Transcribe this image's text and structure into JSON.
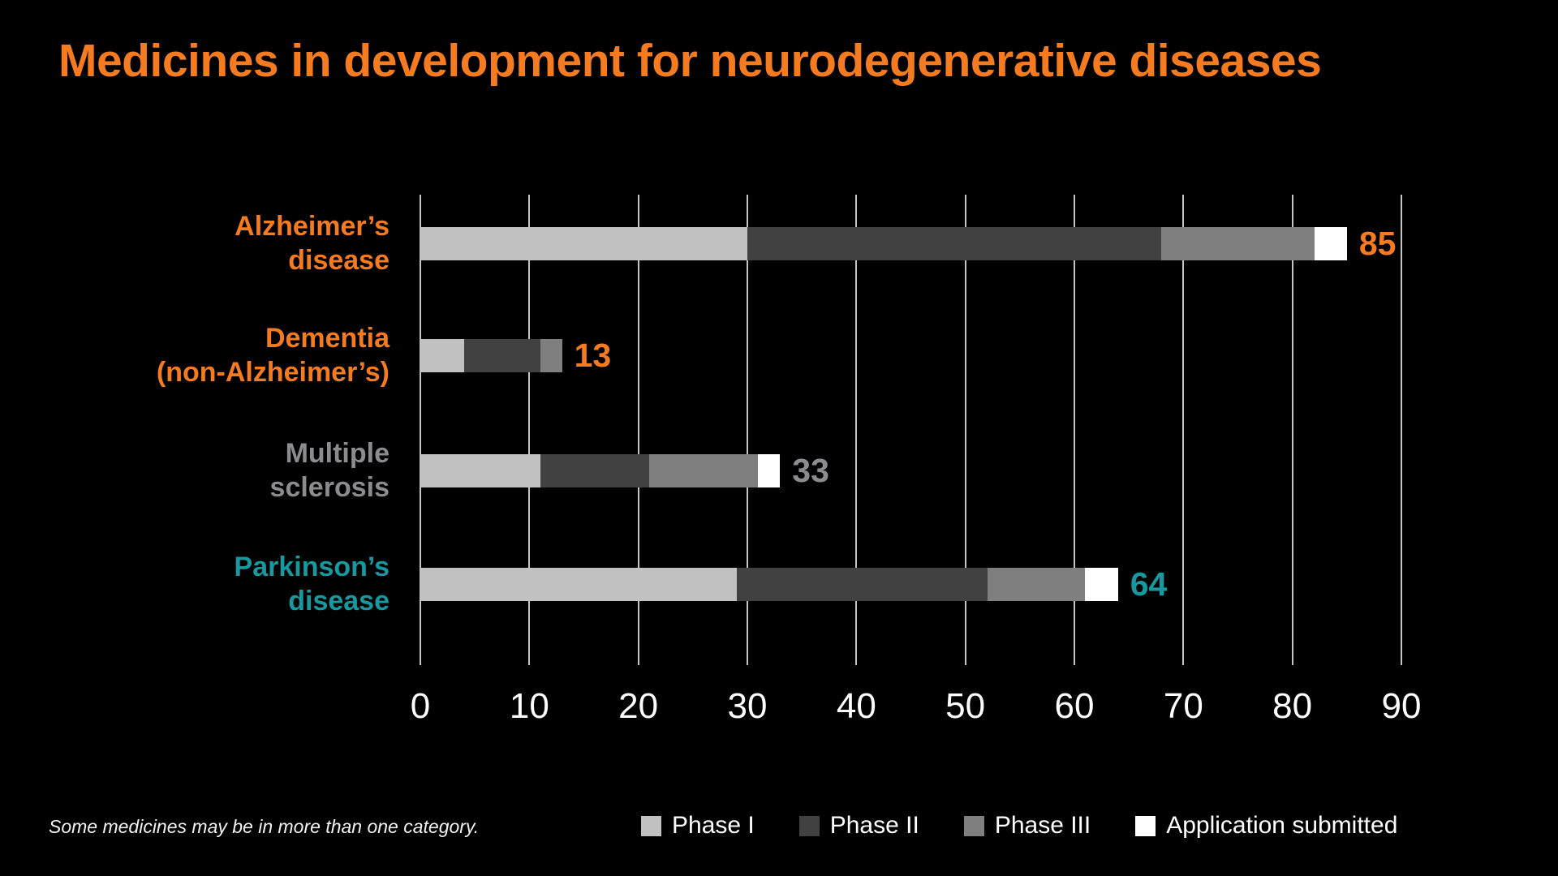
{
  "title": "Medicines in development for neurodegenerative diseases",
  "footnote": "Some medicines may be in more than one category.",
  "colors": {
    "background": "#000000",
    "title": "#F47B20",
    "axis_text": "#FFFFFF",
    "gridline": "#C4C4C4",
    "orange": "#F47B20",
    "gray": "#8C8C8E",
    "teal": "#1899A0",
    "phase1": "#C1C1C1",
    "phase2": "#414141",
    "phase3": "#7F7F7F",
    "application": "#FFFFFF"
  },
  "legend": {
    "items": [
      {
        "label": "Phase I",
        "color_key": "phase1"
      },
      {
        "label": "Phase II",
        "color_key": "phase2"
      },
      {
        "label": "Phase III",
        "color_key": "phase3"
      },
      {
        "label": "Application submitted",
        "color_key": "application"
      }
    ]
  },
  "chart_data": {
    "type": "bar",
    "orientation": "horizontal",
    "stacked": true,
    "title": "Medicines in development for neurodegenerative diseases",
    "xlim": [
      0,
      90
    ],
    "x_ticks": [
      0,
      10,
      20,
      30,
      40,
      50,
      60,
      70,
      80,
      90
    ],
    "grid": true,
    "legend_position": "bottom",
    "categories": [
      "Alzheimer’s disease",
      "Dementia (non-Alzheimer’s)",
      "Multiple sclerosis",
      "Parkinson’s disease"
    ],
    "category_label_lines": [
      [
        "Alzheimer’s",
        "disease"
      ],
      [
        "Dementia",
        "(non-Alzheimer’s)"
      ],
      [
        "Multiple",
        "sclerosis"
      ],
      [
        "Parkinson’s",
        "disease"
      ]
    ],
    "category_colors": [
      "orange",
      "orange",
      "gray",
      "teal"
    ],
    "totals": [
      85,
      13,
      33,
      64
    ],
    "series": [
      {
        "name": "Phase I",
        "color_key": "phase1",
        "values": [
          30,
          4,
          11,
          29
        ]
      },
      {
        "name": "Phase II",
        "color_key": "phase2",
        "values": [
          38,
          7,
          10,
          23
        ]
      },
      {
        "name": "Phase III",
        "color_key": "phase3",
        "values": [
          14,
          2,
          10,
          9
        ]
      },
      {
        "name": "Application submitted",
        "color_key": "application",
        "values": [
          3,
          0,
          2,
          3
        ]
      }
    ]
  }
}
